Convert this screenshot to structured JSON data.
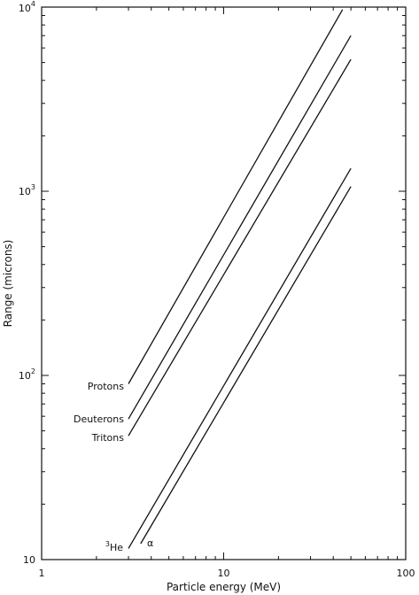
{
  "chart_data": {
    "type": "line",
    "xlabel": "Particle energy (MeV)",
    "ylabel": "Range (microns)",
    "xscale": "log",
    "yscale": "log",
    "xlim": [
      1,
      100
    ],
    "ylim": [
      10,
      10000
    ],
    "grid": false,
    "x_tick_labels": [
      "1",
      "10",
      "100"
    ],
    "y_tick_labels": [
      {
        "base": "10",
        "exp": ""
      },
      {
        "base": "10",
        "exp": "2"
      },
      {
        "base": "10",
        "exp": "3"
      },
      {
        "base": "10",
        "exp": "4"
      }
    ],
    "series": [
      {
        "name": "Protons",
        "points": [
          [
            3.0,
            90
          ],
          [
            45,
            9700
          ]
        ]
      },
      {
        "name": "Deuterons",
        "points": [
          [
            3.0,
            58
          ],
          [
            50,
            7000
          ]
        ]
      },
      {
        "name": "Tritons",
        "points": [
          [
            3.0,
            47
          ],
          [
            50,
            5200
          ]
        ]
      },
      {
        "name": "³He",
        "label_base": "He",
        "label_sup": "3",
        "points": [
          [
            3.0,
            11.5
          ],
          [
            50,
            1330
          ]
        ]
      },
      {
        "name": "α",
        "points": [
          [
            3.5,
            12.2
          ],
          [
            50,
            1060
          ]
        ]
      }
    ],
    "color": "#111111"
  }
}
